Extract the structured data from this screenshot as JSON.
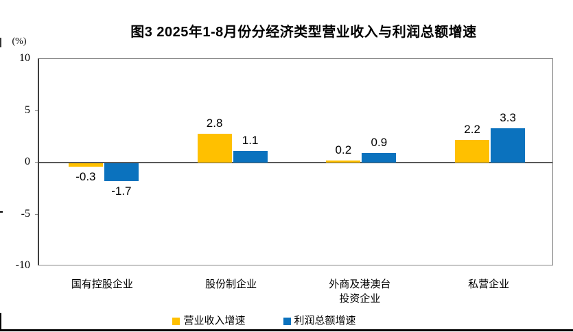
{
  "chart_data": {
    "type": "bar",
    "title": "图3 2025年1-8月份分经济类型营业收入与利润总额增速",
    "unit_label": "(%)",
    "categories": [
      "国有控股企业",
      "股份制企业",
      "外商及港澳台\n投资企业",
      "私营企业"
    ],
    "series": [
      {
        "name": "营业收入增速",
        "color": "#FFC000",
        "values": [
          -0.3,
          2.8,
          0.2,
          2.2
        ]
      },
      {
        "name": "利润总额增速",
        "color": "#0B72BE",
        "values": [
          -1.7,
          1.1,
          0.9,
          3.3
        ]
      }
    ],
    "ylim": [
      -10,
      10
    ],
    "yticks": [
      10,
      5,
      0,
      -5,
      -10
    ],
    "grid": false,
    "legend_position": "bottom",
    "value_labels": true,
    "axis_color": "#595959"
  }
}
